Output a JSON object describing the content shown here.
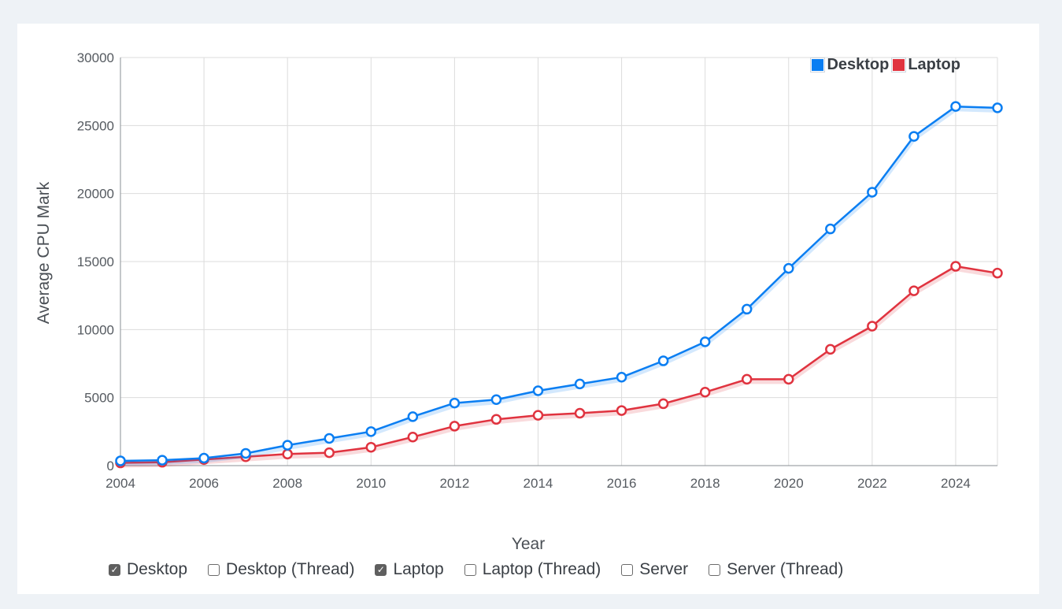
{
  "legend": [
    {
      "name": "Desktop",
      "color": "#0a7ef2"
    },
    {
      "name": "Laptop",
      "color": "#e0333f"
    }
  ],
  "controls": [
    {
      "label": "Desktop",
      "checked": true
    },
    {
      "label": "Desktop (Thread)",
      "checked": false
    },
    {
      "label": "Laptop",
      "checked": true
    },
    {
      "label": "Laptop (Thread)",
      "checked": false
    },
    {
      "label": "Server",
      "checked": false
    },
    {
      "label": "Server (Thread)",
      "checked": false
    }
  ],
  "chart_data": {
    "type": "line",
    "title": "",
    "xlabel": "Year",
    "ylabel": "Average CPU Mark",
    "x": [
      2004,
      2005,
      2006,
      2007,
      2008,
      2009,
      2010,
      2011,
      2012,
      2013,
      2014,
      2015,
      2016,
      2017,
      2018,
      2019,
      2020,
      2021,
      2022,
      2023,
      2024,
      2025
    ],
    "xticks": [
      "2004",
      "2006",
      "2008",
      "2010",
      "2012",
      "2014",
      "2016",
      "2018",
      "2020",
      "2022",
      "2024"
    ],
    "yticks": [
      "0",
      "5000",
      "10000",
      "15000",
      "20000",
      "25000",
      "30000"
    ],
    "xlim": [
      2004,
      2025
    ],
    "ylim": [
      0,
      30000
    ],
    "grid": true,
    "legend_position": "top-right",
    "series": [
      {
        "name": "Desktop",
        "color": "#0a7ef2",
        "values": [
          350,
          400,
          550,
          900,
          1500,
          2000,
          2500,
          3600,
          4600,
          4850,
          5500,
          6000,
          6500,
          7700,
          9100,
          11500,
          14500,
          17400,
          20100,
          24200,
          26400,
          26300
        ]
      },
      {
        "name": "Laptop",
        "color": "#e0333f",
        "values": [
          200,
          250,
          450,
          650,
          850,
          950,
          1350,
          2100,
          2900,
          3400,
          3700,
          3850,
          4050,
          4550,
          5400,
          6350,
          6350,
          8550,
          10250,
          12850,
          14650,
          14150
        ]
      }
    ]
  }
}
